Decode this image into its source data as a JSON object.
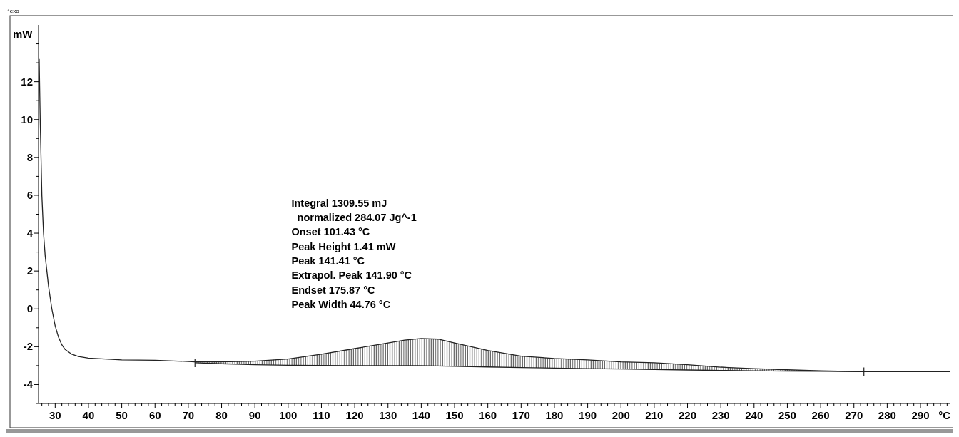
{
  "chart_data": {
    "type": "line",
    "xlabel": "°C",
    "ylabel": "mW",
    "xlim": [
      25,
      299
    ],
    "ylim": [
      -5,
      15
    ],
    "xticks": [
      30,
      40,
      50,
      60,
      70,
      80,
      90,
      100,
      110,
      120,
      130,
      140,
      150,
      160,
      170,
      180,
      190,
      200,
      210,
      220,
      230,
      240,
      250,
      260,
      270,
      280,
      290,
      {
        "value": 26,
        "label": null
      },
      {
        "value": 28,
        "label": null
      },
      {
        "value": 32,
        "label": null
      },
      {
        "value": 34,
        "label": null
      },
      {
        "value": 36,
        "label": null
      },
      {
        "value": 38,
        "label": null
      },
      {
        "value": 42,
        "label": null
      },
      {
        "value": 44,
        "label": null
      },
      {
        "value": 46,
        "label": null
      },
      {
        "value": 48,
        "label": null
      },
      {
        "value": 52,
        "label": null
      },
      {
        "value": 54,
        "label": null
      },
      {
        "value": 56,
        "label": null
      },
      {
        "value": 58,
        "label": null
      },
      {
        "value": 62,
        "label": null
      },
      {
        "value": 64,
        "label": null
      },
      {
        "value": 66,
        "label": null
      },
      {
        "value": 68,
        "label": null
      },
      {
        "value": 72,
        "label": null
      },
      {
        "value": 74,
        "label": null
      },
      {
        "value": 76,
        "label": null
      },
      {
        "value": 78,
        "label": null
      },
      {
        "value": 82,
        "label": null
      },
      {
        "value": 84,
        "label": null
      },
      {
        "value": 86,
        "label": null
      },
      {
        "value": 88,
        "label": null
      },
      {
        "value": 92,
        "label": null
      },
      {
        "value": 94,
        "label": null
      },
      {
        "value": 96,
        "label": null
      },
      {
        "value": 98,
        "label": null
      },
      {
        "value": 102,
        "label": null
      },
      {
        "value": 104,
        "label": null
      },
      {
        "value": 106,
        "label": null
      },
      {
        "value": 108,
        "label": null
      },
      {
        "value": 112,
        "label": null
      },
      {
        "value": 114,
        "label": null
      },
      {
        "value": 116,
        "label": null
      },
      {
        "value": 118,
        "label": null
      },
      {
        "value": 122,
        "label": null
      },
      {
        "value": 124,
        "label": null
      },
      {
        "value": 126,
        "label": null
      },
      {
        "value": 128,
        "label": null
      },
      {
        "value": 132,
        "label": null
      },
      {
        "value": 134,
        "label": null
      },
      {
        "value": 136,
        "label": null
      },
      {
        "value": 138,
        "label": null
      },
      {
        "value": 142,
        "label": null
      },
      {
        "value": 144,
        "label": null
      },
      {
        "value": 146,
        "label": null
      },
      {
        "value": 148,
        "label": null
      },
      {
        "value": 152,
        "label": null
      },
      {
        "value": 154,
        "label": null
      },
      {
        "value": 156,
        "label": null
      },
      {
        "value": 158,
        "label": null
      },
      {
        "value": 162,
        "label": null
      },
      {
        "value": 164,
        "label": null
      },
      {
        "value": 166,
        "label": null
      },
      {
        "value": 168,
        "label": null
      },
      {
        "value": 172,
        "label": null
      },
      {
        "value": 174,
        "label": null
      },
      {
        "value": 176,
        "label": null
      },
      {
        "value": 178,
        "label": null
      },
      {
        "value": 182,
        "label": null
      },
      {
        "value": 184,
        "label": null
      },
      {
        "value": 186,
        "label": null
      },
      {
        "value": 188,
        "label": null
      },
      {
        "value": 192,
        "label": null
      },
      {
        "value": 194,
        "label": null
      },
      {
        "value": 196,
        "label": null
      },
      {
        "value": 198,
        "label": null
      },
      {
        "value": 202,
        "label": null
      },
      {
        "value": 204,
        "label": null
      },
      {
        "value": 206,
        "label": null
      },
      {
        "value": 208,
        "label": null
      },
      {
        "value": 212,
        "label": null
      },
      {
        "value": 214,
        "label": null
      },
      {
        "value": 216,
        "label": null
      },
      {
        "value": 218,
        "label": null
      },
      {
        "value": 222,
        "label": null
      },
      {
        "value": 224,
        "label": null
      },
      {
        "value": 226,
        "label": null
      },
      {
        "value": 228,
        "label": null
      },
      {
        "value": 232,
        "label": null
      },
      {
        "value": 234,
        "label": null
      },
      {
        "value": 236,
        "label": null
      },
      {
        "value": 238,
        "label": null
      },
      {
        "value": 242,
        "label": null
      },
      {
        "value": 244,
        "label": null
      },
      {
        "value": 246,
        "label": null
      },
      {
        "value": 248,
        "label": null
      },
      {
        "value": 252,
        "label": null
      },
      {
        "value": 254,
        "label": null
      },
      {
        "value": 256,
        "label": null
      },
      {
        "value": 258,
        "label": null
      },
      {
        "value": 262,
        "label": null
      },
      {
        "value": 264,
        "label": null
      },
      {
        "value": 266,
        "label": null
      },
      {
        "value": 268,
        "label": null
      },
      {
        "value": 272,
        "label": null
      },
      {
        "value": 274,
        "label": null
      },
      {
        "value": 276,
        "label": null
      },
      {
        "value": 278,
        "label": null
      },
      {
        "value": 282,
        "label": null
      },
      {
        "value": 284,
        "label": null
      },
      {
        "value": 286,
        "label": null
      },
      {
        "value": 288,
        "label": null
      },
      {
        "value": 292,
        "label": null
      },
      {
        "value": 294,
        "label": null
      },
      {
        "value": 296,
        "label": null
      },
      {
        "value": 298,
        "label": null
      }
    ],
    "yticks": [
      -4,
      -2,
      0,
      2,
      4,
      6,
      8,
      10,
      12,
      {
        "value": -5,
        "label": null
      },
      {
        "value": -3,
        "label": null
      },
      {
        "value": -1,
        "label": null
      },
      {
        "value": 1,
        "label": null
      },
      {
        "value": 3,
        "label": null
      },
      {
        "value": 5,
        "label": null
      },
      {
        "value": 7,
        "label": null
      },
      {
        "value": 9,
        "label": null
      },
      {
        "value": 11,
        "label": null
      },
      {
        "value": 13,
        "label": null
      },
      {
        "value": 14,
        "label": null
      }
    ],
    "grid": false,
    "marker": "none",
    "line_style": "solid",
    "annotations": [
      "^exo",
      "Integral 1309.55 mJ",
      "  normalized 284.07 Jg^-1",
      "Onset 101.43 °C",
      "Peak Height 1.41 mW",
      "Peak 141.41 °C",
      "Extrapol. Peak 141.90 °C",
      "Endset 175.87 °C",
      "Peak Width 44.76 °C"
    ],
    "series": [
      {
        "color": "#222222",
        "x": [
          25.2,
          25.5,
          26,
          26.5,
          27,
          28,
          29,
          30,
          31,
          32,
          33,
          35,
          37,
          40,
          45,
          50,
          60,
          70,
          72,
          80,
          90,
          100,
          110,
          120,
          130,
          135,
          140,
          145,
          150,
          160,
          170,
          180,
          190,
          200,
          210,
          220,
          230,
          240,
          250,
          260,
          273,
          280,
          299
        ],
        "values": [
          13.2,
          10,
          6,
          4,
          2.8,
          1.2,
          0,
          -0.9,
          -1.5,
          -1.9,
          -2.15,
          -2.4,
          -2.52,
          -2.6,
          -2.65,
          -2.7,
          -2.72,
          -2.78,
          -2.8,
          -2.8,
          -2.76,
          -2.65,
          -2.4,
          -2.1,
          -1.8,
          -1.65,
          -1.57,
          -1.6,
          -1.8,
          -2.2,
          -2.5,
          -2.62,
          -2.7,
          -2.8,
          -2.85,
          -2.95,
          -3.08,
          -3.16,
          -3.22,
          -3.27,
          -3.32,
          -3.32,
          -3.32
        ]
      },
      {
        "color": "#222222",
        "x": [
          72,
          80,
          90,
          100,
          110,
          120,
          130,
          135,
          140,
          145,
          150,
          160,
          170,
          180,
          190,
          200,
          210,
          220,
          230,
          240,
          250,
          260,
          273
        ],
        "values": [
          -2.85,
          -2.9,
          -2.95,
          -2.98,
          -2.99,
          -3.0,
          -3.0,
          -3.0,
          -3.0,
          -3.02,
          -3.04,
          -3.07,
          -3.1,
          -3.13,
          -3.16,
          -3.18,
          -3.21,
          -3.23,
          -3.25,
          -3.27,
          -3.29,
          -3.3,
          -3.32
        ]
      }
    ]
  }
}
